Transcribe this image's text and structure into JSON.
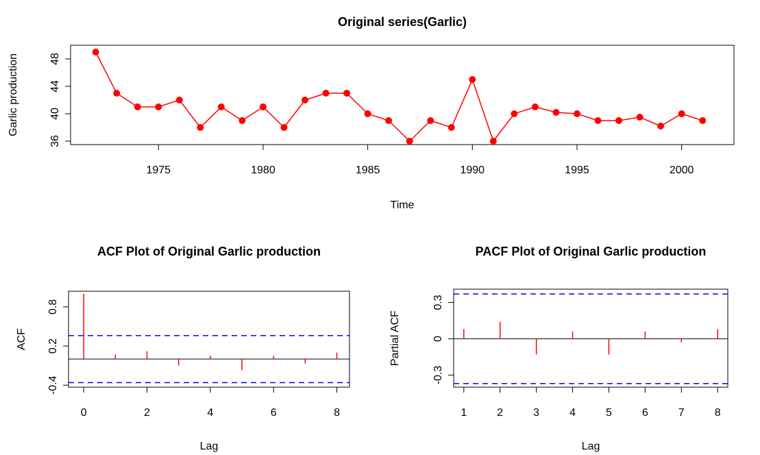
{
  "chart_data": [
    {
      "type": "line",
      "title": "Original series(Garlic)",
      "x_label": "Time",
      "y_label": "Garlic production",
      "x": [
        1972,
        1973,
        1974,
        1975,
        1976,
        1977,
        1978,
        1979,
        1980,
        1981,
        1982,
        1983,
        1984,
        1985,
        1986,
        1987,
        1988,
        1989,
        1990,
        1991,
        1992,
        1993,
        1994,
        1995,
        1996,
        1997,
        1998,
        1999,
        2000,
        2001
      ],
      "values": [
        49,
        43,
        41,
        41,
        42,
        38,
        41,
        39,
        41,
        38,
        42,
        43,
        43,
        40,
        39,
        36,
        39,
        38,
        45,
        36,
        40,
        41,
        40.2,
        40,
        39,
        39,
        39.5,
        38.2,
        40,
        39
      ],
      "color": "#ff0000",
      "xlim": [
        1970.8,
        2002.5
      ],
      "xticks": [
        1975,
        1980,
        1985,
        1990,
        1995,
        2000
      ],
      "ylim": [
        35.5,
        50
      ],
      "yticks": [
        36,
        40,
        44,
        48
      ]
    },
    {
      "type": "stem",
      "title": "ACF Plot of Original Garlic production",
      "x_label": "Lag",
      "y_label": "ACF",
      "x": [
        0,
        1,
        2,
        3,
        4,
        5,
        6,
        7,
        8
      ],
      "values": [
        1,
        0.07,
        0.12,
        -0.1,
        0.05,
        -0.17,
        0.05,
        -0.07,
        0.1
      ],
      "color": "#ff0000",
      "ci_bounds": [
        0.36,
        -0.36
      ],
      "ci_color": "#0000ff",
      "xlim": [
        -0.48,
        8.4
      ],
      "xticks": [
        0,
        2,
        4,
        6,
        8
      ],
      "ylim": [
        -0.43,
        1.04
      ],
      "yticks": [
        -0.4,
        0.2,
        0.8
      ]
    },
    {
      "type": "stem",
      "title": "PACF Plot of Original Garlic production",
      "x_label": "Lag",
      "y_label": "Partial ACF",
      "x": [
        1,
        2,
        3,
        4,
        5,
        6,
        7,
        8
      ],
      "values": [
        0.08,
        0.14,
        -0.13,
        0.06,
        -0.13,
        0.06,
        -0.03,
        0.08
      ],
      "color": "#ff0000",
      "ci_bounds": [
        0.37,
        -0.37
      ],
      "ci_color": "#0000ff",
      "xlim": [
        0.72,
        8.28
      ],
      "xticks": [
        1,
        2,
        3,
        4,
        5,
        6,
        7,
        8
      ],
      "ylim": [
        -0.4,
        0.41
      ],
      "yticks": [
        -0.3,
        0,
        0.3
      ]
    }
  ]
}
